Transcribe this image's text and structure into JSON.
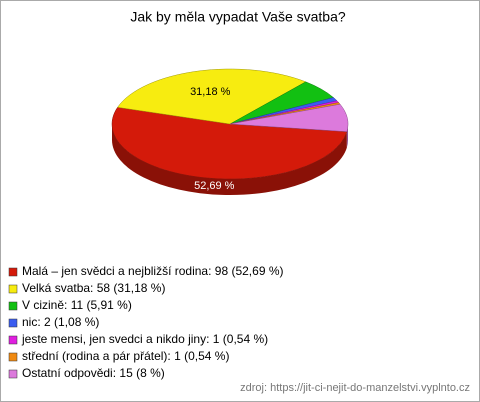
{
  "chart_data": {
    "type": "pie3d",
    "title": "Jak by měla vypadat Vaše svatba?",
    "categories": [
      "Malá – jen svědci a nejbližší rodina:",
      "Velká svatba:",
      "V cizině:",
      "nic:",
      "jeste mensi, jen svedci a nikdo jiny:",
      "střední (rodina a pár přátel):",
      "Ostatní odpovědi:"
    ],
    "values": [
      98,
      58,
      11,
      2,
      1,
      1,
      15
    ],
    "value_labels": [
      "98 (52,69 %)",
      "58 (31,18 %)",
      "11 (5,91 %)",
      "2 (1,08 %)",
      "1 (0,54 %)",
      "1 (0,54 %)",
      "15 (8 %)"
    ],
    "percents": [
      52.69,
      31.18,
      5.91,
      1.08,
      0.54,
      0.54,
      8
    ],
    "percent_labels": [
      "52,69 %",
      "31,18 %",
      null,
      null,
      null,
      null,
      null
    ],
    "colors": [
      "#d41a0a",
      "#f7ec10",
      "#12c012",
      "#3a5cf0",
      "#e01ee0",
      "#f08a12",
      "#dc7adc"
    ],
    "source": "zdroj: https://jit-ci-nejit-do-manzelstvi.vyplnto.cz"
  }
}
